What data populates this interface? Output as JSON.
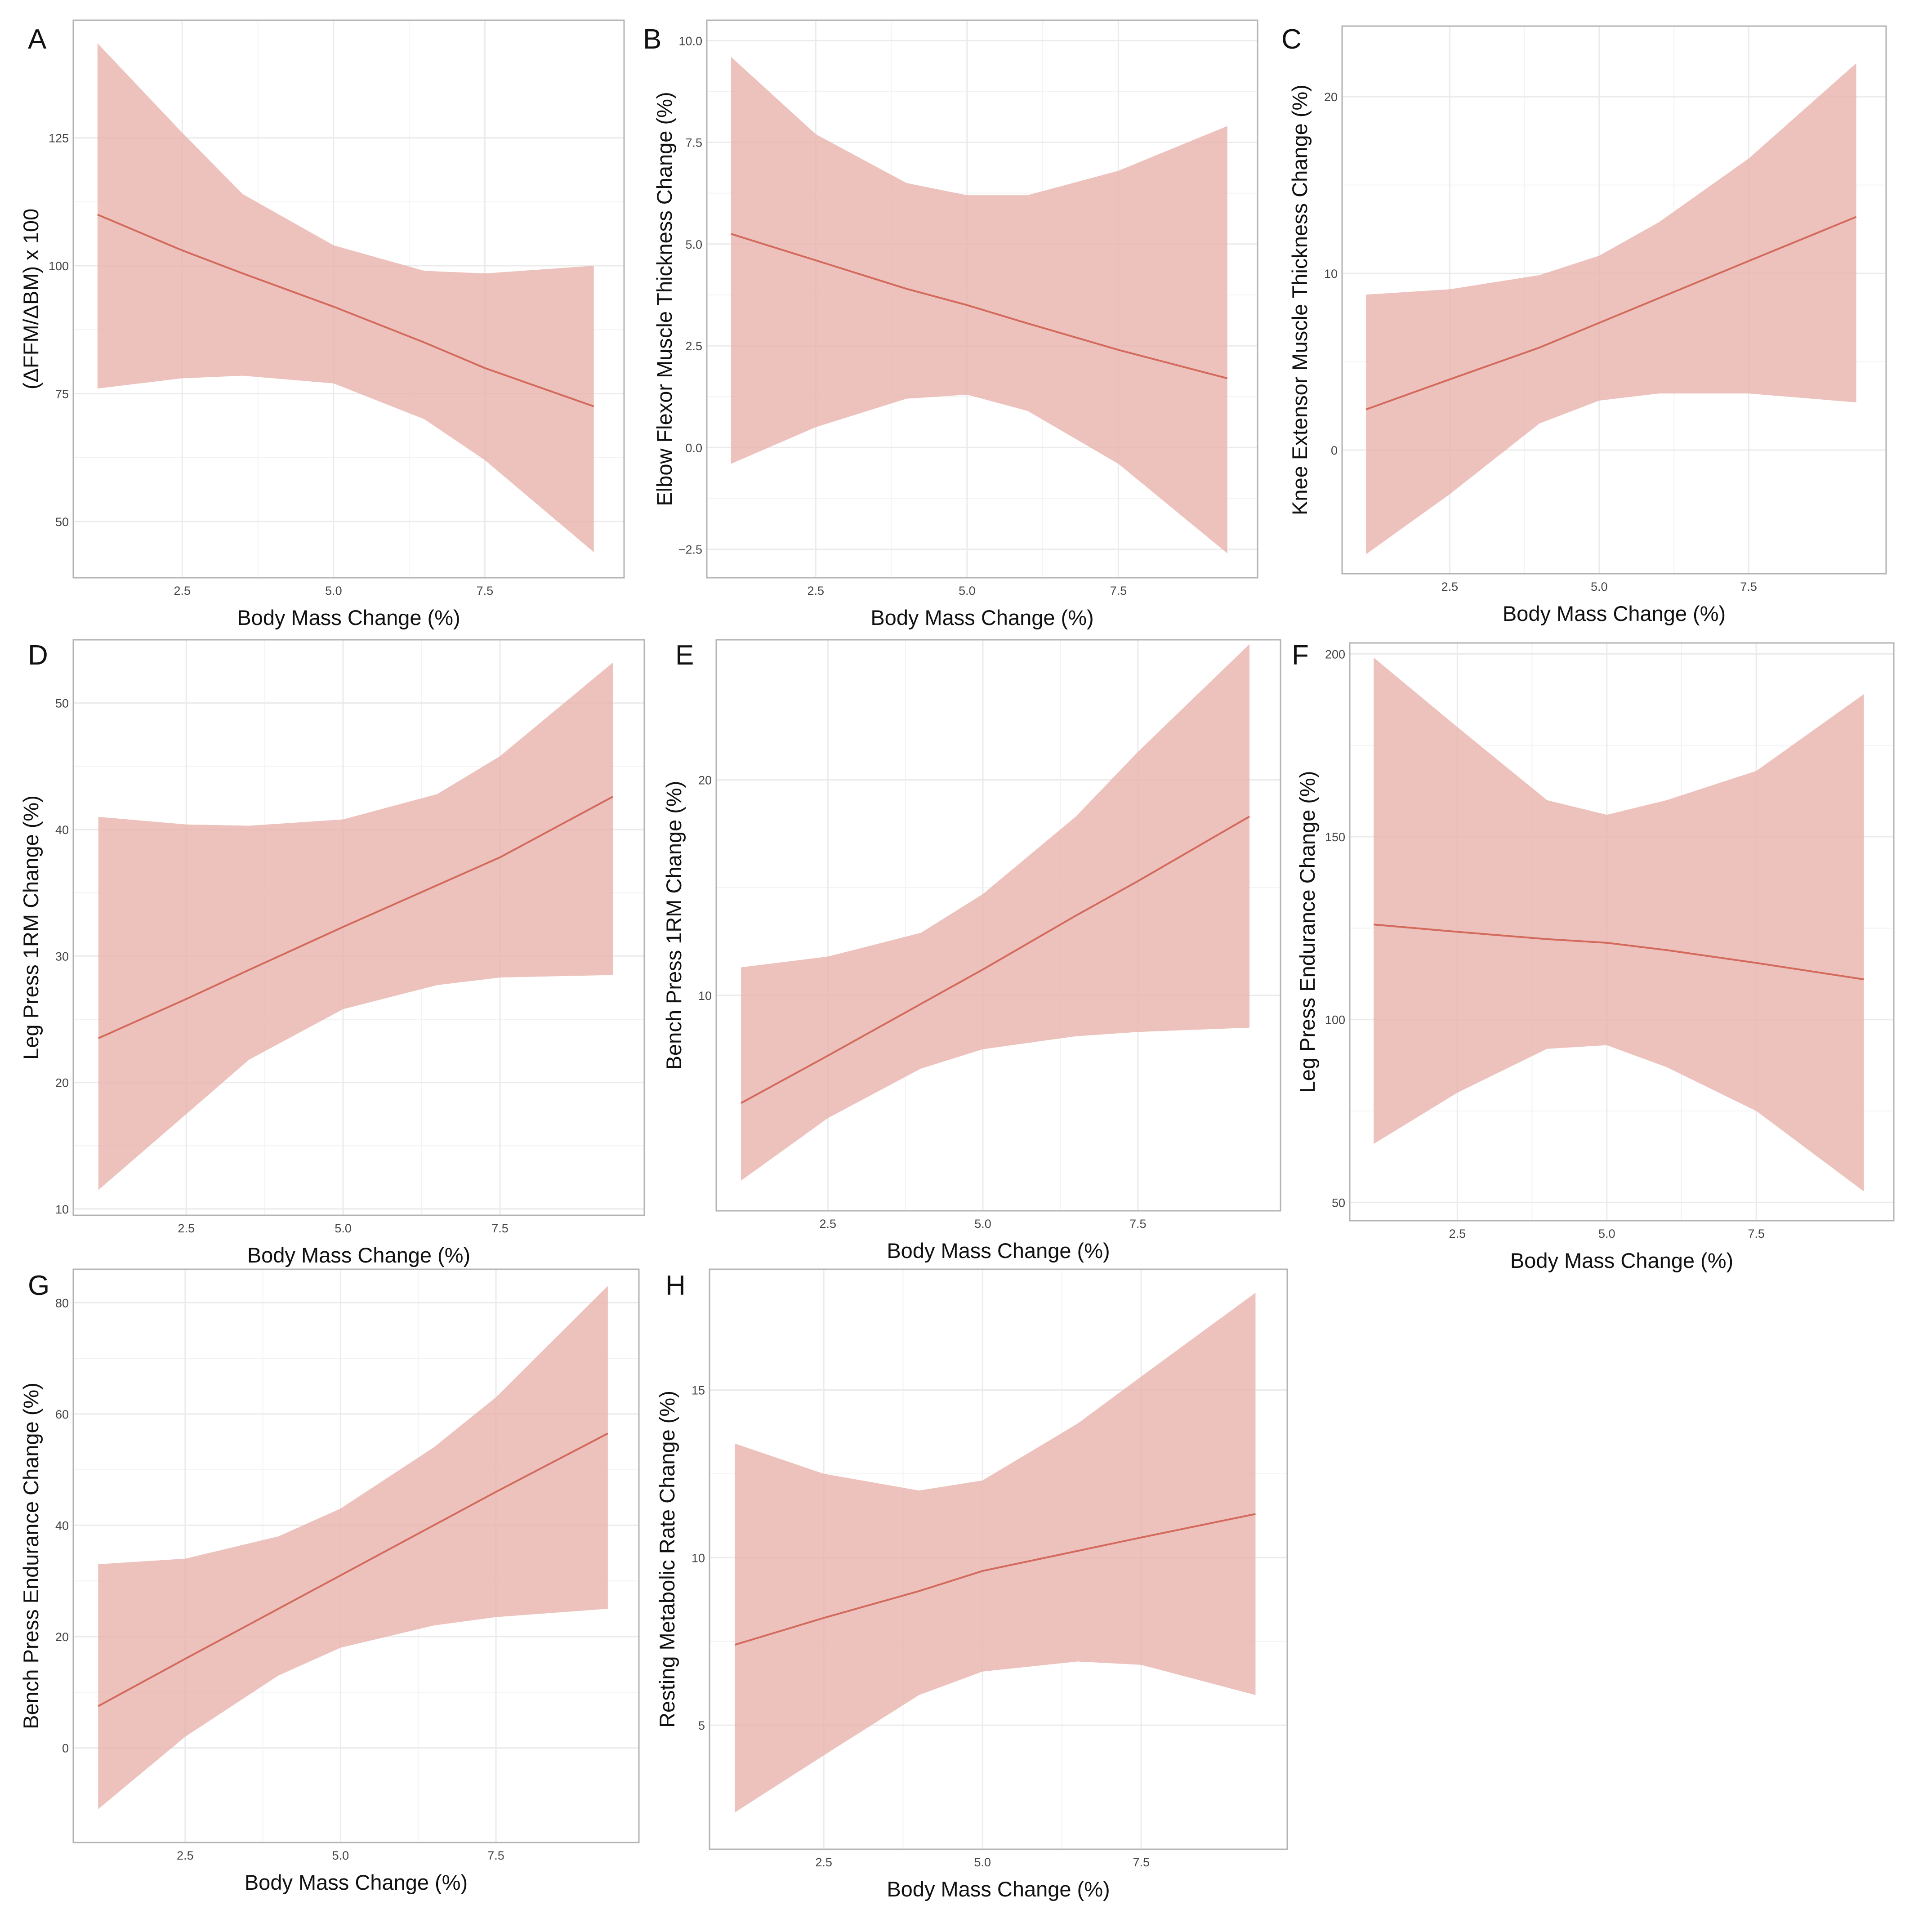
{
  "colors": {
    "band": "#e8b1ab",
    "line": "#d36a5c",
    "grid": "#ebebeb",
    "frame": "#b3b3b3"
  },
  "chart_data": [
    {
      "type": "line",
      "panel": "A",
      "xlabel": "Body Mass Change (%)",
      "ylabel": "(ΔFFM/ΔBM) x 100",
      "xlim": [
        0.7,
        9.8
      ],
      "ylim": [
        39,
        148
      ],
      "xticks": [
        2.5,
        5.0,
        7.5
      ],
      "xtick_labels": [
        "2.5",
        "5.0",
        "7.5"
      ],
      "yticks": [
        50,
        75,
        100,
        125
      ],
      "ytick_labels": [
        "50",
        "75",
        "100",
        "125"
      ],
      "x": [
        1.1,
        2.5,
        3.5,
        5.0,
        6.5,
        7.5,
        9.3
      ],
      "fit": [
        110,
        103,
        98.5,
        92,
        85,
        80,
        72.5
      ],
      "lower": [
        76,
        78,
        78.5,
        77,
        70,
        62,
        44
      ],
      "upper": [
        143.5,
        126,
        114,
        104,
        99,
        98.5,
        100
      ]
    },
    {
      "type": "line",
      "panel": "B",
      "xlabel": "Body Mass Change (%)",
      "ylabel": "Elbow Flexor Muscle Thickness Change (%)",
      "xlim": [
        0.7,
        9.8
      ],
      "ylim": [
        -3.2,
        10.5
      ],
      "xticks": [
        2.5,
        5.0,
        7.5
      ],
      "xtick_labels": [
        "2.5",
        "5.0",
        "7.5"
      ],
      "yticks": [
        -2.5,
        0.0,
        2.5,
        5.0,
        7.5,
        10.0
      ],
      "ytick_labels": [
        "−2.5",
        "0.0",
        "2.5",
        "5.0",
        "7.5",
        "10.0"
      ],
      "x": [
        1.1,
        2.5,
        4.0,
        5.0,
        6.0,
        7.5,
        9.3
      ],
      "fit": [
        5.25,
        4.6,
        3.9,
        3.5,
        3.05,
        2.4,
        1.7
      ],
      "lower": [
        -0.4,
        0.5,
        1.2,
        1.3,
        0.9,
        -0.4,
        -2.6
      ],
      "upper": [
        9.6,
        7.7,
        6.5,
        6.2,
        6.2,
        6.8,
        7.9
      ]
    },
    {
      "type": "line",
      "panel": "C",
      "xlabel": "Body Mass Change (%)",
      "ylabel": "Knee Extensor Muscle Thickness Change (%)",
      "xlim": [
        0.7,
        9.8
      ],
      "ylim": [
        -7,
        24
      ],
      "xticks": [
        2.5,
        5.0,
        7.5
      ],
      "xtick_labels": [
        "2.5",
        "5.0",
        "7.5"
      ],
      "yticks": [
        0,
        10,
        20
      ],
      "ytick_labels": [
        "0",
        "10",
        "20"
      ],
      "x": [
        1.1,
        2.5,
        4.0,
        5.0,
        6.0,
        7.5,
        9.3
      ],
      "fit": [
        2.3,
        4.0,
        5.8,
        7.2,
        8.6,
        10.7,
        13.2
      ],
      "lower": [
        -5.9,
        -2.5,
        1.5,
        2.8,
        3.2,
        3.2,
        2.7
      ],
      "upper": [
        8.8,
        9.1,
        9.9,
        11.0,
        12.9,
        16.5,
        21.9
      ]
    },
    {
      "type": "line",
      "panel": "D",
      "xlabel": "Body Mass Change (%)",
      "ylabel": "Leg Press 1RM Change (%)",
      "xlim": [
        0.7,
        9.8
      ],
      "ylim": [
        9.5,
        55
      ],
      "xticks": [
        2.5,
        5.0,
        7.5
      ],
      "xtick_labels": [
        "2.5",
        "5.0",
        "7.5"
      ],
      "yticks": [
        10,
        20,
        30,
        40,
        50
      ],
      "ytick_labels": [
        "10",
        "20",
        "30",
        "40",
        "50"
      ],
      "x": [
        1.1,
        2.5,
        3.5,
        5.0,
        6.5,
        7.5,
        9.3
      ],
      "fit": [
        23.5,
        26.6,
        28.9,
        32.3,
        35.6,
        37.8,
        42.6
      ],
      "lower": [
        11.5,
        17.5,
        21.8,
        25.8,
        27.7,
        28.3,
        28.5
      ],
      "upper": [
        41,
        40.4,
        40.3,
        40.8,
        42.8,
        45.8,
        53.2
      ]
    },
    {
      "type": "line",
      "panel": "E",
      "xlabel": "Body Mass Change (%)",
      "ylabel": "Bench Press 1RM Change (%)",
      "xlim": [
        0.7,
        9.8
      ],
      "ylim": [
        0,
        26.5
      ],
      "xticks": [
        2.5,
        5.0,
        7.5
      ],
      "xtick_labels": [
        "2.5",
        "5.0",
        "7.5"
      ],
      "yticks": [
        10,
        20
      ],
      "ytick_labels": [
        "10",
        "20"
      ],
      "x": [
        1.1,
        2.5,
        4.0,
        5.0,
        6.5,
        7.5,
        9.3
      ],
      "fit": [
        5.0,
        7.2,
        9.6,
        11.2,
        13.7,
        15.3,
        18.3
      ],
      "lower": [
        1.4,
        4.3,
        6.6,
        7.5,
        8.1,
        8.3,
        8.5
      ],
      "upper": [
        11.3,
        11.8,
        12.9,
        14.7,
        18.3,
        21.3,
        26.3
      ]
    },
    {
      "type": "line",
      "panel": "F",
      "xlabel": "Body Mass Change (%)",
      "ylabel": "Leg Press Endurance Change (%)",
      "xlim": [
        0.7,
        9.8
      ],
      "ylim": [
        45,
        203
      ],
      "xticks": [
        2.5,
        5.0,
        7.5
      ],
      "xtick_labels": [
        "2.5",
        "5.0",
        "7.5"
      ],
      "yticks": [
        50,
        100,
        150,
        200
      ],
      "ytick_labels": [
        "50",
        "100",
        "150",
        "200"
      ],
      "x": [
        1.1,
        2.5,
        4.0,
        5.0,
        6.0,
        7.5,
        9.3
      ],
      "fit": [
        126,
        124,
        122,
        121,
        119,
        115.5,
        111
      ],
      "lower": [
        66,
        80,
        92,
        93,
        87,
        75,
        53
      ],
      "upper": [
        199,
        180,
        160,
        156,
        160,
        168,
        189
      ]
    },
    {
      "type": "line",
      "panel": "G",
      "xlabel": "Body Mass Change (%)",
      "ylabel": "Bench Press Endurance Change (%)",
      "xlim": [
        0.7,
        9.8
      ],
      "ylim": [
        -17,
        86
      ],
      "xticks": [
        2.5,
        5.0,
        7.5
      ],
      "xtick_labels": [
        "2.5",
        "5.0",
        "7.5"
      ],
      "yticks": [
        0,
        20,
        40,
        60,
        80
      ],
      "ytick_labels": [
        "0",
        "20",
        "40",
        "60",
        "80"
      ],
      "x": [
        1.1,
        2.5,
        4.0,
        5.0,
        6.5,
        7.5,
        9.3
      ],
      "fit": [
        7.5,
        16,
        25,
        31,
        40,
        46,
        56.5
      ],
      "lower": [
        -11,
        2,
        13,
        18,
        22,
        23.5,
        25
      ],
      "upper": [
        33,
        34,
        38,
        43,
        54,
        63,
        83
      ]
    },
    {
      "type": "line",
      "panel": "H",
      "xlabel": "Body Mass Change (%)",
      "ylabel": "Resting Metabolic Rate Change (%)",
      "xlim": [
        0.7,
        9.8
      ],
      "ylim": [
        1.3,
        18.6
      ],
      "xticks": [
        2.5,
        5.0,
        7.5
      ],
      "xtick_labels": [
        "2.5",
        "5.0",
        "7.5"
      ],
      "yticks": [
        5,
        10,
        15
      ],
      "ytick_labels": [
        "5",
        "10",
        "15"
      ],
      "x": [
        1.1,
        2.5,
        4.0,
        5.0,
        6.5,
        7.5,
        9.3
      ],
      "fit": [
        7.4,
        8.2,
        9.0,
        9.6,
        10.2,
        10.6,
        11.3
      ],
      "lower": [
        2.4,
        4.1,
        5.9,
        6.6,
        6.9,
        6.8,
        5.9
      ],
      "upper": [
        13.4,
        12.5,
        12.0,
        12.3,
        14.0,
        15.4,
        17.9
      ]
    }
  ]
}
